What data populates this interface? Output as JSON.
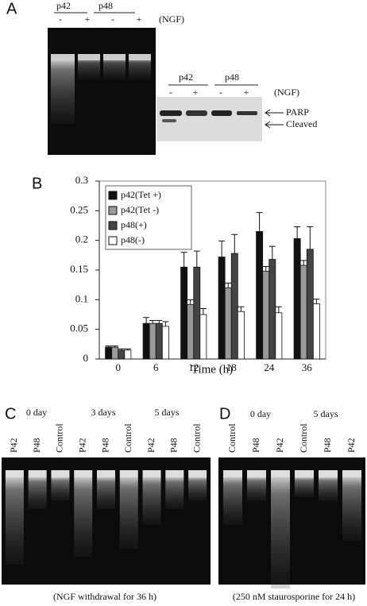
{
  "panel_a": {
    "label": "A",
    "gel_groups": [
      "p42",
      "p48"
    ],
    "gel_lanes": [
      "-",
      "+",
      "-",
      "+"
    ],
    "gel_treatment": "(NGF)",
    "blot_groups": [
      "p42",
      "p48"
    ],
    "blot_lanes": [
      "-",
      "+",
      "-",
      "+"
    ],
    "blot_treatment": "(NGF)",
    "blot_markers": [
      "PARP",
      "Cleaved"
    ]
  },
  "chart_data": {
    "type": "bar",
    "panel_label": "B",
    "x_label": "Time (h)",
    "categories": [
      "0",
      "6",
      "12",
      "18",
      "24",
      "36"
    ],
    "ylim": [
      0,
      0.3
    ],
    "yticks": [
      0,
      0.05,
      0.1,
      0.15,
      0.2,
      0.25,
      0.3
    ],
    "legend": "top-left",
    "series": [
      {
        "name": "p42(Tet +)",
        "color": "#111111",
        "values": [
          0.02,
          0.06,
          0.155,
          0.172,
          0.215,
          0.203
        ],
        "errors": [
          0.002,
          0.01,
          0.025,
          0.027,
          0.032,
          0.02
        ]
      },
      {
        "name": "p42(Tet -)",
        "color": "#999999",
        "values": [
          0.02,
          0.06,
          0.092,
          0.12,
          0.148,
          0.158
        ],
        "errors": [
          0.002,
          0.005,
          0.008,
          0.008,
          0.008,
          0.008
        ]
      },
      {
        "name": "p48(+)",
        "color": "#444444",
        "values": [
          0.015,
          0.06,
          0.155,
          0.178,
          0.168,
          0.185
        ],
        "errors": [
          0.002,
          0.005,
          0.027,
          0.032,
          0.022,
          0.038
        ]
      },
      {
        "name": "p48(-)",
        "color": "#ffffff",
        "values": [
          0.015,
          0.055,
          0.075,
          0.08,
          0.078,
          0.093
        ],
        "errors": [
          0.002,
          0.008,
          0.01,
          0.008,
          0.01,
          0.008
        ]
      }
    ]
  },
  "panel_c": {
    "label": "C",
    "groups": [
      "0 day",
      "3 days",
      "5 days"
    ],
    "lanes": [
      "P42",
      "P48",
      "Control",
      "P42",
      "P48",
      "Control",
      "P42",
      "P48",
      "Control"
    ],
    "caption": "(NGF withdrawal for 36 h)"
  },
  "panel_d": {
    "label": "D",
    "groups": [
      "0 day",
      "5 days"
    ],
    "lanes": [
      "Control",
      "P48",
      "P42",
      "Control",
      "P48",
      "P42"
    ],
    "caption": "(250 nM staurosporine for 24 h)"
  }
}
